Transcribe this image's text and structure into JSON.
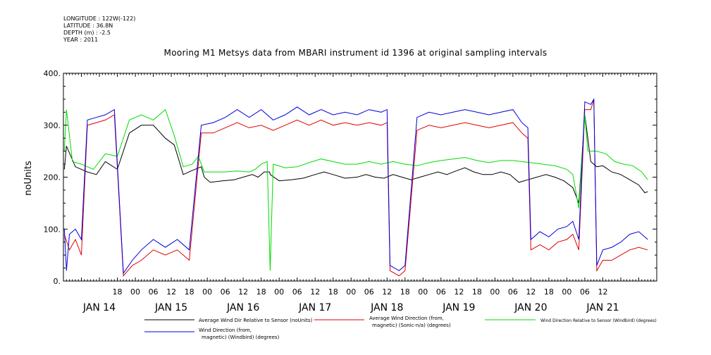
{
  "meta": {
    "longitude": "LONGITUDE : 122W(-122)",
    "latitude": "LATITUDE : 36.8N",
    "depth": "DEPTH (m) : -2.5",
    "year": "YEAR : 2011"
  },
  "chart_data": {
    "type": "line",
    "title": "Mooring M1 Metsys data from MBARI instrument id 1396 at original sampling intervals",
    "ylabel": "noUnits",
    "ylim": [
      0,
      400
    ],
    "yticks": [
      0,
      100,
      200,
      300,
      400
    ],
    "ytick_labels": [
      "0.",
      "100.",
      "200.",
      "300.",
      "400."
    ],
    "xlim_hours": [
      -12,
      186
    ],
    "x_hour_ticks": [
      {
        "h": 6,
        "label": "18"
      },
      {
        "h": 12,
        "label": "00"
      },
      {
        "h": 18,
        "label": "06"
      },
      {
        "h": 24,
        "label": "12"
      },
      {
        "h": 30,
        "label": "18"
      },
      {
        "h": 36,
        "label": "00"
      },
      {
        "h": 42,
        "label": "06"
      },
      {
        "h": 48,
        "label": "12"
      },
      {
        "h": 54,
        "label": "18"
      },
      {
        "h": 60,
        "label": "00"
      },
      {
        "h": 66,
        "label": "06"
      },
      {
        "h": 72,
        "label": "12"
      },
      {
        "h": 78,
        "label": "18"
      },
      {
        "h": 84,
        "label": "00"
      },
      {
        "h": 90,
        "label": "06"
      },
      {
        "h": 96,
        "label": "12"
      },
      {
        "h": 102,
        "label": "18"
      },
      {
        "h": 108,
        "label": "00"
      },
      {
        "h": 114,
        "label": "06"
      },
      {
        "h": 120,
        "label": "12"
      },
      {
        "h": 126,
        "label": "18"
      },
      {
        "h": 132,
        "label": "00"
      },
      {
        "h": 138,
        "label": "06"
      },
      {
        "h": 144,
        "label": "12"
      },
      {
        "h": 150,
        "label": "18"
      },
      {
        "h": 156,
        "label": "00"
      },
      {
        "h": 162,
        "label": "06"
      },
      {
        "h": 168,
        "label": "12"
      }
    ],
    "day_labels": [
      {
        "h": 0,
        "label": "JAN 14"
      },
      {
        "h": 24,
        "label": "JAN 15"
      },
      {
        "h": 48,
        "label": "JAN 16"
      },
      {
        "h": 72,
        "label": "JAN 17"
      },
      {
        "h": 96,
        "label": "JAN 18"
      },
      {
        "h": 120,
        "label": "JAN 19"
      },
      {
        "h": 144,
        "label": "JAN 20"
      },
      {
        "h": 168,
        "label": "JAN 21"
      }
    ],
    "series": [
      {
        "name": "Average Wind Dir Relative to Sensor (noUnits)",
        "color": "#000000",
        "points": [
          [
            -11.7,
            215
          ],
          [
            -11,
            260
          ],
          [
            -8,
            220
          ],
          [
            -4,
            210
          ],
          [
            -1,
            205
          ],
          [
            2,
            230
          ],
          [
            6,
            215
          ],
          [
            10,
            285
          ],
          [
            14,
            300
          ],
          [
            18,
            300
          ],
          [
            22,
            275
          ],
          [
            25,
            262
          ],
          [
            28,
            205
          ],
          [
            31,
            213
          ],
          [
            34,
            220
          ],
          [
            35,
            200
          ],
          [
            37,
            190
          ],
          [
            41,
            193
          ],
          [
            45,
            195
          ],
          [
            48,
            200
          ],
          [
            51,
            205
          ],
          [
            53,
            200
          ],
          [
            55,
            210
          ],
          [
            56.8,
            210
          ],
          [
            57,
            205
          ],
          [
            60,
            193
          ],
          [
            64,
            195
          ],
          [
            68,
            198
          ],
          [
            72,
            205
          ],
          [
            75,
            210
          ],
          [
            78,
            205
          ],
          [
            82,
            198
          ],
          [
            86,
            200
          ],
          [
            89,
            205
          ],
          [
            92,
            200
          ],
          [
            95,
            198
          ],
          [
            98,
            205
          ],
          [
            101,
            200
          ],
          [
            104,
            195
          ],
          [
            107,
            200
          ],
          [
            110,
            205
          ],
          [
            113,
            210
          ],
          [
            116,
            205
          ],
          [
            119,
            212
          ],
          [
            122,
            218
          ],
          [
            125,
            210
          ],
          [
            128,
            205
          ],
          [
            131,
            205
          ],
          [
            134,
            210
          ],
          [
            137,
            205
          ],
          [
            140,
            190
          ],
          [
            143,
            195
          ],
          [
            146,
            200
          ],
          [
            149,
            205
          ],
          [
            152,
            200
          ],
          [
            155,
            193
          ],
          [
            158,
            180
          ],
          [
            160,
            150
          ],
          [
            162,
            320
          ],
          [
            164,
            230
          ],
          [
            166,
            220
          ],
          [
            168,
            222
          ],
          [
            171,
            210
          ],
          [
            174,
            205
          ],
          [
            177,
            195
          ],
          [
            180,
            185
          ],
          [
            182,
            170
          ],
          [
            183,
            172
          ]
        ]
      },
      {
        "name": "Average Wind Direction (from, magnetic) (Sonic-n/a) (degrees)",
        "color": "#e00000",
        "points": [
          [
            -11.7,
            90
          ],
          [
            -10,
            60
          ],
          [
            -8,
            80
          ],
          [
            -6,
            50
          ],
          [
            -4,
            300
          ],
          [
            -1,
            305
          ],
          [
            2,
            310
          ],
          [
            5,
            320
          ],
          [
            8,
            10
          ],
          [
            11,
            30
          ],
          [
            14,
            40
          ],
          [
            18,
            60
          ],
          [
            22,
            50
          ],
          [
            26,
            60
          ],
          [
            30,
            40
          ],
          [
            34,
            285
          ],
          [
            38,
            285
          ],
          [
            42,
            295
          ],
          [
            46,
            305
          ],
          [
            50,
            295
          ],
          [
            54,
            300
          ],
          [
            58,
            290
          ],
          [
            62,
            300
          ],
          [
            66,
            310
          ],
          [
            70,
            300
          ],
          [
            74,
            310
          ],
          [
            78,
            300
          ],
          [
            82,
            305
          ],
          [
            86,
            300
          ],
          [
            90,
            305
          ],
          [
            94,
            300
          ],
          [
            96,
            305
          ],
          [
            97,
            20
          ],
          [
            100,
            10
          ],
          [
            102,
            20
          ],
          [
            106,
            290
          ],
          [
            110,
            300
          ],
          [
            114,
            295
          ],
          [
            118,
            300
          ],
          [
            122,
            305
          ],
          [
            126,
            300
          ],
          [
            130,
            295
          ],
          [
            134,
            300
          ],
          [
            138,
            305
          ],
          [
            141,
            285
          ],
          [
            143,
            275
          ],
          [
            144,
            60
          ],
          [
            147,
            70
          ],
          [
            150,
            60
          ],
          [
            153,
            75
          ],
          [
            156,
            80
          ],
          [
            158,
            90
          ],
          [
            160,
            60
          ],
          [
            162,
            330
          ],
          [
            164,
            330
          ],
          [
            165,
            350
          ],
          [
            166,
            20
          ],
          [
            168,
            40
          ],
          [
            171,
            40
          ],
          [
            174,
            50
          ],
          [
            177,
            60
          ],
          [
            180,
            65
          ],
          [
            183,
            60
          ]
        ]
      },
      {
        "name": "Wind Direction Relative to Sensor (Windbird) (degrees)",
        "color": "#00dd00",
        "points": [
          [
            -11.7,
            250
          ],
          [
            -11,
            330
          ],
          [
            -9,
            230
          ],
          [
            -6,
            225
          ],
          [
            -2,
            215
          ],
          [
            2,
            245
          ],
          [
            6,
            240
          ],
          [
            10,
            310
          ],
          [
            14,
            320
          ],
          [
            18,
            310
          ],
          [
            22,
            330
          ],
          [
            25,
            280
          ],
          [
            28,
            220
          ],
          [
            31,
            225
          ],
          [
            33,
            240
          ],
          [
            35,
            210
          ],
          [
            38,
            210
          ],
          [
            42,
            210
          ],
          [
            46,
            212
          ],
          [
            50,
            210
          ],
          [
            52,
            215
          ],
          [
            54,
            225
          ],
          [
            56,
            230
          ],
          [
            57,
            20
          ],
          [
            58,
            225
          ],
          [
            62,
            218
          ],
          [
            66,
            220
          ],
          [
            70,
            228
          ],
          [
            74,
            235
          ],
          [
            78,
            230
          ],
          [
            82,
            225
          ],
          [
            86,
            225
          ],
          [
            90,
            230
          ],
          [
            94,
            225
          ],
          [
            98,
            230
          ],
          [
            102,
            225
          ],
          [
            106,
            222
          ],
          [
            110,
            228
          ],
          [
            114,
            232
          ],
          [
            118,
            235
          ],
          [
            122,
            238
          ],
          [
            126,
            232
          ],
          [
            130,
            228
          ],
          [
            134,
            232
          ],
          [
            138,
            232
          ],
          [
            141,
            230
          ],
          [
            144,
            228
          ],
          [
            148,
            225
          ],
          [
            152,
            222
          ],
          [
            156,
            215
          ],
          [
            158,
            205
          ],
          [
            160,
            140
          ],
          [
            162,
            320
          ],
          [
            163,
            250
          ],
          [
            166,
            250
          ],
          [
            169,
            245
          ],
          [
            172,
            230
          ],
          [
            175,
            225
          ],
          [
            178,
            222
          ],
          [
            181,
            210
          ],
          [
            183,
            195
          ]
        ]
      },
      {
        "name": "Wind Direction (from, magnetic) (Windbird) (degrees)",
        "color": "#0000dd",
        "points": [
          [
            -11.7,
            100
          ],
          [
            -11,
            20
          ],
          [
            -10,
            90
          ],
          [
            -8,
            100
          ],
          [
            -6,
            80
          ],
          [
            -4,
            310
          ],
          [
            -1,
            315
          ],
          [
            2,
            320
          ],
          [
            5,
            330
          ],
          [
            8,
            15
          ],
          [
            11,
            40
          ],
          [
            14,
            60
          ],
          [
            18,
            80
          ],
          [
            22,
            65
          ],
          [
            26,
            80
          ],
          [
            30,
            60
          ],
          [
            34,
            300
          ],
          [
            38,
            305
          ],
          [
            42,
            315
          ],
          [
            46,
            330
          ],
          [
            50,
            315
          ],
          [
            54,
            330
          ],
          [
            58,
            310
          ],
          [
            62,
            320
          ],
          [
            66,
            335
          ],
          [
            70,
            320
          ],
          [
            74,
            330
          ],
          [
            78,
            320
          ],
          [
            82,
            325
          ],
          [
            86,
            320
          ],
          [
            90,
            330
          ],
          [
            94,
            325
          ],
          [
            96,
            330
          ],
          [
            97,
            30
          ],
          [
            100,
            20
          ],
          [
            102,
            30
          ],
          [
            106,
            315
          ],
          [
            110,
            325
          ],
          [
            114,
            320
          ],
          [
            118,
            325
          ],
          [
            122,
            330
          ],
          [
            126,
            325
          ],
          [
            130,
            320
          ],
          [
            134,
            325
          ],
          [
            138,
            330
          ],
          [
            141,
            305
          ],
          [
            143,
            295
          ],
          [
            144,
            80
          ],
          [
            147,
            95
          ],
          [
            150,
            85
          ],
          [
            153,
            100
          ],
          [
            156,
            105
          ],
          [
            158,
            115
          ],
          [
            160,
            80
          ],
          [
            162,
            345
          ],
          [
            164,
            340
          ],
          [
            165,
            350
          ],
          [
            166,
            30
          ],
          [
            168,
            60
          ],
          [
            171,
            65
          ],
          [
            174,
            75
          ],
          [
            177,
            90
          ],
          [
            180,
            95
          ],
          [
            183,
            80
          ]
        ]
      }
    ],
    "legend_labels": {
      "s0": "Average Wind Dir Relative to Sensor (noUnits)",
      "s1a": "Average Wind Direction (from,",
      "s1b": "magnetic) (Sonic-n/a) (degrees)",
      "s2": "Wind Direction Relative to Sensor (Windbird) (degrees)",
      "s3a": "Wind Direction (from,",
      "s3b": "magnetic) (Windbird) (degrees)"
    },
    "grid": false,
    "legend_position": "bottom"
  }
}
